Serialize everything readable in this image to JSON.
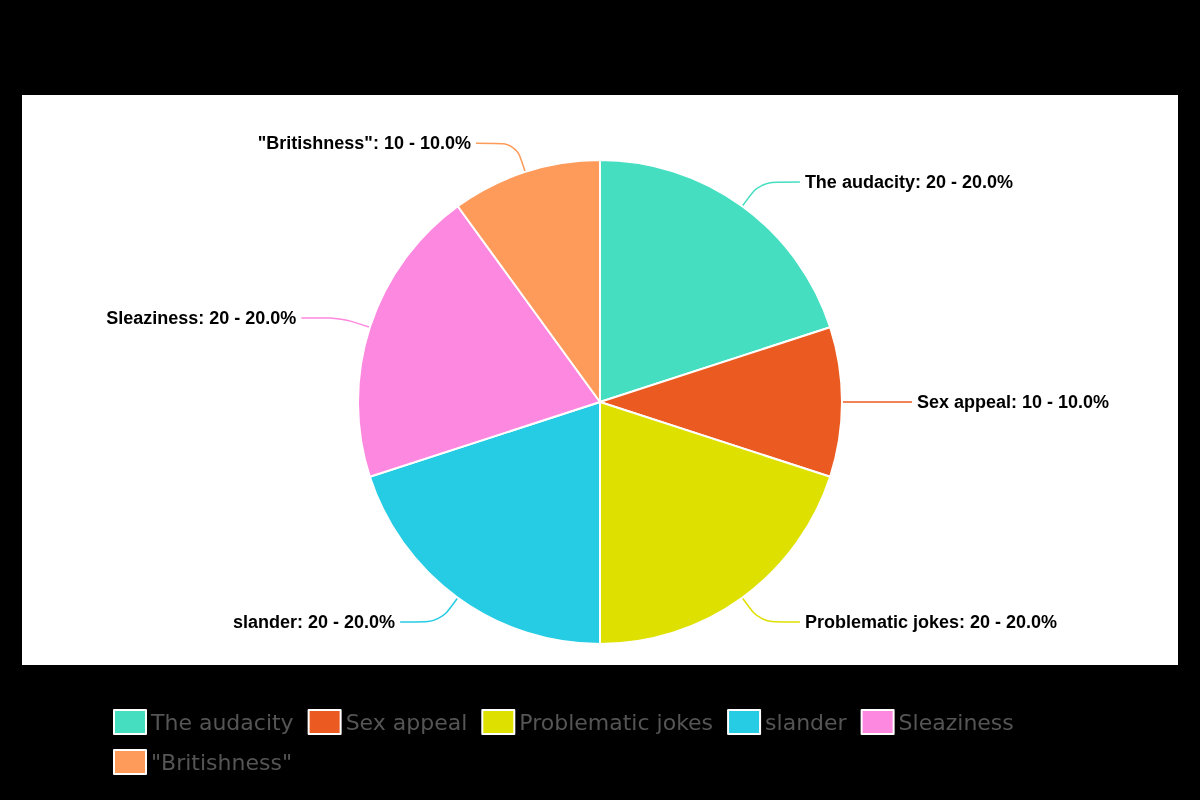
{
  "chart_data": {
    "type": "pie",
    "categories": [
      "The audacity",
      "Sex appeal",
      "Problematic jokes",
      "slander",
      "Sleaziness",
      "\"Britishness\""
    ],
    "values": [
      20,
      10,
      20,
      20,
      20,
      10
    ],
    "colors": [
      "#45dec0",
      "#eb5a20",
      "#dee000",
      "#26cce4",
      "#fd88e0",
      "#fe9a5a"
    ],
    "value_labels": [
      "The audacity: 20 - 20.0%",
      "Sex appeal: 10 - 10.0%",
      "Problematic jokes: 20 - 20.0%",
      "slander: 20 - 20.0%",
      "Sleaziness: 20 - 20.0%",
      "\"Britishness\": 10 - 10.0%"
    ],
    "legend": "bottom"
  }
}
